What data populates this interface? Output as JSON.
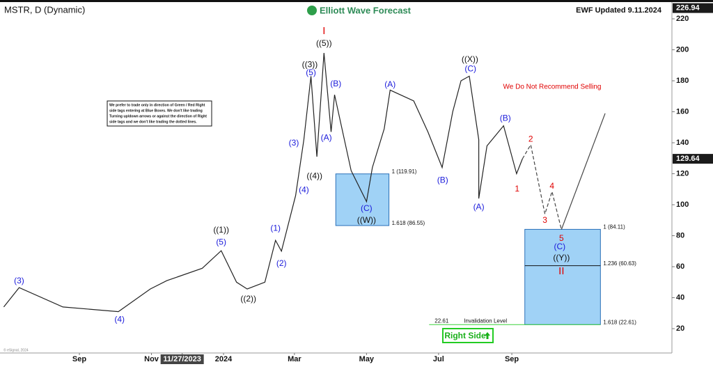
{
  "chart_data": {
    "type": "line",
    "title": "MSTR, D (Dynamic)",
    "brand": "Elliott Wave Forecast",
    "updated": "EWF Updated 9.11.2024",
    "warning": "We Do Not Recommend Selling",
    "note": [
      "We prefer to trade only in direction of Green / Red Right",
      "side tags entering at Blue Boxes. We don't like trading",
      "Turning up/down arrows or against the direction of Right",
      "side tags and we don't like trading the dotted lines."
    ],
    "button": "Right Side",
    "copyright": "© eSignal, 2024",
    "xlim": [
      -67.2,
      501.5
    ],
    "xticks": [
      {
        "value": 0,
        "label": "Sep"
      },
      {
        "value": 61,
        "label": "Nov"
      },
      {
        "value": 87,
        "label": "11/27/2023"
      },
      {
        "value": 122,
        "label": "2024"
      },
      {
        "value": 182,
        "label": "Mar"
      },
      {
        "value": 243,
        "label": "May"
      },
      {
        "value": 304,
        "label": "Jul"
      },
      {
        "value": 366,
        "label": "Sep"
      }
    ],
    "ylim": [
      4.3,
      229.9
    ],
    "yticks": [
      20,
      40,
      60,
      80,
      100,
      120,
      140,
      160,
      180,
      200,
      220
    ],
    "price_tags": [
      226.94,
      129.64
    ],
    "series": [
      {
        "color": "#222222",
        "dash": false,
        "x": [
          -64,
          -51,
          -14,
          33,
          60,
          74,
          104,
          120,
          133,
          142,
          157,
          166,
          171,
          183,
          190,
          196,
          201,
          207,
          213,
          216,
          230,
          243,
          248,
          258,
          263,
          283,
          295,
          307,
          316,
          323,
          330,
          338,
          338,
          345,
          359,
          370,
          375
        ],
        "values": [
          34,
          46.5,
          34,
          31,
          45.6,
          51,
          59,
          70.3,
          50,
          45.6,
          50,
          77,
          70,
          106,
          142,
          183,
          131,
          198,
          147,
          171,
          122,
          102,
          124,
          149,
          174,
          167,
          147,
          124,
          160,
          180,
          183,
          142,
          104,
          138,
          151,
          120,
          129.64
        ]
      },
      {
        "color": "#444444",
        "dash": true,
        "x": [
          375,
          382,
          394,
          400,
          408
        ],
        "values": [
          129.64,
          138.7,
          94,
          108.5,
          84
        ]
      },
      {
        "color": "#444444",
        "dash": false,
        "x": [
          408,
          445
        ],
        "values": [
          84,
          159
        ]
      }
    ],
    "boxes": [
      {
        "x": [
          217,
          262
        ],
        "top": 119.91,
        "bottom": 86.55,
        "top_label": "1 (119.91)",
        "bottom_label": "1.618 (86.55)"
      },
      {
        "x": [
          377,
          441
        ],
        "top": 84.11,
        "bottom": 22.61,
        "top_label": "1 (84.11)",
        "mid": 60.63,
        "mid_label": "1.236 (60.63)",
        "bottom_label": "1.618 (22.61)"
      }
    ],
    "invalidation": {
      "value": 22.61,
      "text": "Invalidation Level",
      "x": [
        296,
        441
      ]
    },
    "annotations": [
      {
        "text": "(3)",
        "x": -51,
        "y": 50.6,
        "color": "#1a1adb"
      },
      {
        "text": "(4)",
        "x": 34,
        "y": 25.8,
        "color": "#1a1adb"
      },
      {
        "text": "((1))",
        "x": 120,
        "y": 83.4,
        "color": "#111111"
      },
      {
        "text": "(5)",
        "x": 120,
        "y": 75.7,
        "color": "#1a1adb"
      },
      {
        "text": "(1)",
        "x": 166,
        "y": 84.7,
        "color": "#1a1adb"
      },
      {
        "text": "(2)",
        "x": 171,
        "y": 61.8,
        "color": "#1a1adb"
      },
      {
        "text": "((2))",
        "x": 143,
        "y": 38.9,
        "color": "#111111"
      },
      {
        "text": "(3)",
        "x": 181.5,
        "y": 139.6,
        "color": "#1a1adb"
      },
      {
        "text": "(4)",
        "x": 190,
        "y": 109.4,
        "color": "#1a1adb"
      },
      {
        "text": "((4))",
        "x": 199,
        "y": 118.4,
        "color": "#111111"
      },
      {
        "text": "(5)",
        "x": 196,
        "y": 185,
        "color": "#1a1adb"
      },
      {
        "text": "((3))",
        "x": 195,
        "y": 190.3,
        "color": "#111111"
      },
      {
        "text": "((5))",
        "x": 207,
        "y": 203.8,
        "color": "#111111"
      },
      {
        "text": "I",
        "x": 207,
        "y": 211.9,
        "color": "#e00000"
      },
      {
        "text": "(A)",
        "x": 209,
        "y": 143.1,
        "color": "#1a1adb"
      },
      {
        "text": "(B)",
        "x": 217,
        "y": 177.8,
        "color": "#1a1adb"
      },
      {
        "text": "(C)",
        "x": 243,
        "y": 97.3,
        "color": "#1a1adb"
      },
      {
        "text": "((W))",
        "x": 243,
        "y": 89.7,
        "color": "#111111"
      },
      {
        "text": "(A)",
        "x": 263,
        "y": 177.3,
        "color": "#1a1adb"
      },
      {
        "text": "(B)",
        "x": 307.5,
        "y": 115.7,
        "color": "#1a1adb"
      },
      {
        "text": "((X))",
        "x": 330.5,
        "y": 193.5,
        "color": "#111111"
      },
      {
        "text": "(C)",
        "x": 331,
        "y": 187.6,
        "color": "#1a1adb"
      },
      {
        "text": "(A)",
        "x": 338,
        "y": 98.2,
        "color": "#1a1adb"
      },
      {
        "text": "(B)",
        "x": 360.5,
        "y": 155.7,
        "color": "#1a1adb"
      },
      {
        "text": "1",
        "x": 370.5,
        "y": 109.9,
        "color": "#e00000"
      },
      {
        "text": "2",
        "x": 382,
        "y": 142.2,
        "color": "#e00000"
      },
      {
        "text": "3",
        "x": 394,
        "y": 89.7,
        "color": "#e00000"
      },
      {
        "text": "4",
        "x": 400,
        "y": 111.7,
        "color": "#e00000"
      },
      {
        "text": "5",
        "x": 408,
        "y": 78,
        "color": "#e00000"
      },
      {
        "text": "(C)",
        "x": 406.5,
        "y": 72.6,
        "color": "#1a1adb"
      },
      {
        "text": "((Y))",
        "x": 408,
        "y": 65.4,
        "color": "#111111"
      },
      {
        "text": "II",
        "x": 408,
        "y": 56.9,
        "color": "#e00000"
      }
    ]
  }
}
